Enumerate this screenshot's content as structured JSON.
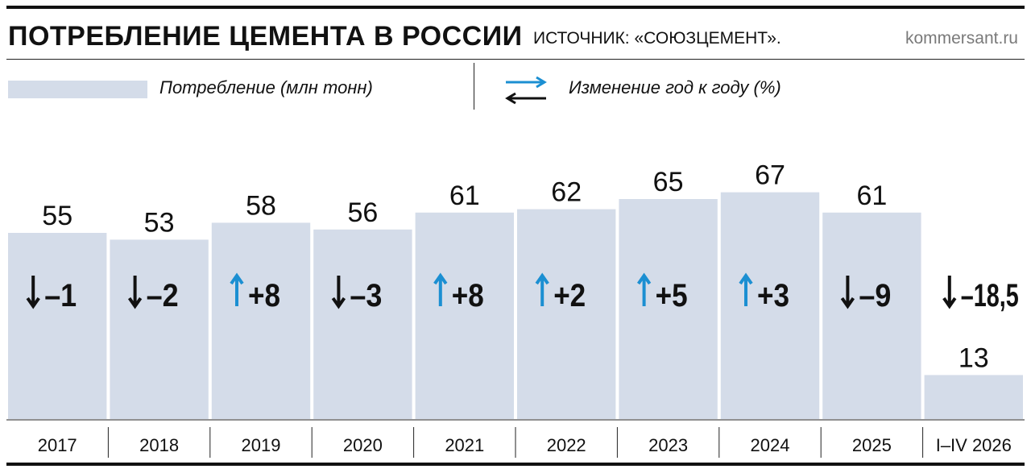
{
  "header": {
    "title": "ПОТРЕБЛЕНИЕ ЦЕМЕНТА В РОССИИ",
    "source": "ИСТОЧНИК: «СОЮЗЦЕМЕНТ».",
    "site": "kommersant.ru"
  },
  "legend": {
    "consumption": "Потребление (млн тонн)",
    "change": "Изменение год к году (%)"
  },
  "colors": {
    "bar": "#d4dce9",
    "up_arrow": "#1b8fd2",
    "down_arrow": "#111111"
  },
  "chart_data": {
    "type": "bar",
    "categories": [
      "2017",
      "2018",
      "2019",
      "2020",
      "2021",
      "2022",
      "2023",
      "2024",
      "2025",
      "I–IV 2026"
    ],
    "values": [
      55,
      53,
      58,
      56,
      61,
      62,
      65,
      67,
      61,
      13
    ],
    "change": [
      "–1",
      "–2",
      "+8",
      "–3",
      "+8",
      "+2",
      "+5",
      "+3",
      "–9",
      "–18,5"
    ],
    "direction": [
      "down",
      "down",
      "up",
      "down",
      "up",
      "up",
      "up",
      "up",
      "down",
      "down"
    ],
    "title": "ПОТРЕБЛЕНИЕ ЦЕМЕНТА В РОССИИ",
    "legend": [
      "Потребление (млн тонн)",
      "Изменение год к году (%)"
    ],
    "grid": false,
    "ylim": [
      0,
      67
    ]
  }
}
